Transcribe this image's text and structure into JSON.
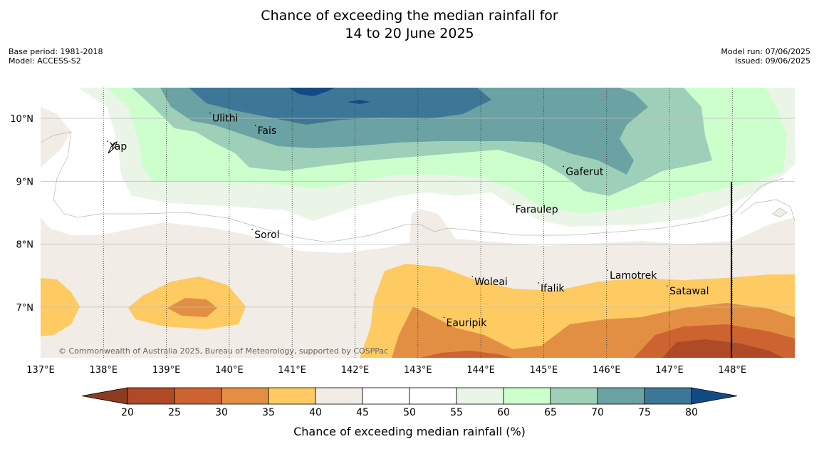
{
  "title_line1": "Chance of exceeding the median rainfall for",
  "title_line2": "14 to 20 June 2025",
  "base_period": "Base period: 1981-2018",
  "model": "Model: ACCESS-S2",
  "model_run": "Model run: 07/06/2025",
  "issued": "Issued: 09/06/2025",
  "copyright": "© Commonwealth of Australia 2025, Bureau of Meteorology, supported by COSPPac",
  "colorbar_label": "Chance of exceeding median rainfall (%)",
  "colorbar_ticks": [
    "20",
    "25",
    "30",
    "35",
    "40",
    "45",
    "50",
    "55",
    "60",
    "65",
    "70",
    "75",
    "80"
  ],
  "colors": {
    "under20": "#8e3b1f",
    "c20_25": "#b04a26",
    "c25_30": "#cc6331",
    "c30_35": "#e28f43",
    "c35_40": "#fecb63",
    "c40_45": "#f1ece6",
    "c45_50": "#ffffff",
    "c50_55": "#ffffff",
    "c55_60": "#eaf5e8",
    "c60_65": "#ccffcc",
    "c65_70": "#9ed0b9",
    "c70_75": "#6ba2a3",
    "c75_80": "#3d7797",
    "over80": "#114b83"
  },
  "lon_labels": [
    "137°E",
    "138°E",
    "139°E",
    "140°E",
    "141°E",
    "142°E",
    "143°E",
    "144°E",
    "145°E",
    "146°E",
    "147°E",
    "148°E"
  ],
  "lat_labels": [
    "10°N",
    "9°N",
    "8°N",
    "7°N"
  ],
  "places": [
    {
      "name": "Ulithi",
      "lon": 139.73,
      "lat": 9.95
    },
    {
      "name": "Fais",
      "lon": 140.45,
      "lat": 9.75
    },
    {
      "name": "Yap",
      "lon": 138.1,
      "lat": 9.5
    },
    {
      "name": "Gaferut",
      "lon": 145.35,
      "lat": 9.1
    },
    {
      "name": "Faraulep",
      "lon": 144.55,
      "lat": 8.5
    },
    {
      "name": "Sorol",
      "lon": 140.4,
      "lat": 8.1
    },
    {
      "name": "Lamotrek",
      "lon": 146.05,
      "lat": 7.45
    },
    {
      "name": "Woleai",
      "lon": 143.9,
      "lat": 7.35
    },
    {
      "name": "Ifalik",
      "lon": 144.95,
      "lat": 7.25
    },
    {
      "name": "Satawal",
      "lon": 147.0,
      "lat": 7.2
    },
    {
      "name": "Eauripik",
      "lon": 143.45,
      "lat": 6.7
    }
  ]
}
